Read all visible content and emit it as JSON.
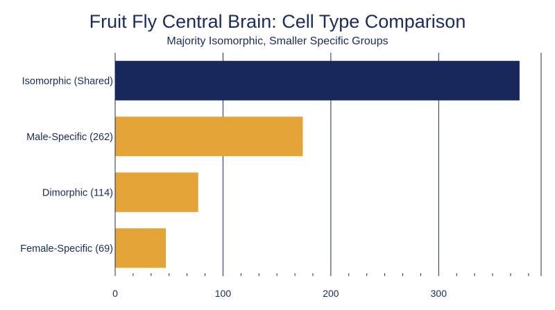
{
  "chart_data": {
    "type": "bar",
    "orientation": "horizontal",
    "title": "Fruit Fly Central Brain: Cell Type Comparison",
    "subtitle": "Majority Isomorphic, Smaller Specific Groups",
    "categories": [
      "Isomorphic (Shared)",
      "Male-Specific (262)",
      "Dimorphic (114)",
      "Female-Specific (69)"
    ],
    "values": [
      375,
      174,
      77,
      47
    ],
    "colors": [
      "#16285c",
      "#e3a336",
      "#e3a336",
      "#e3a336"
    ],
    "xlim": [
      0,
      395
    ],
    "x_ticks": [
      0,
      100,
      200,
      300
    ],
    "grid": true,
    "xlabel": "",
    "ylabel": ""
  }
}
